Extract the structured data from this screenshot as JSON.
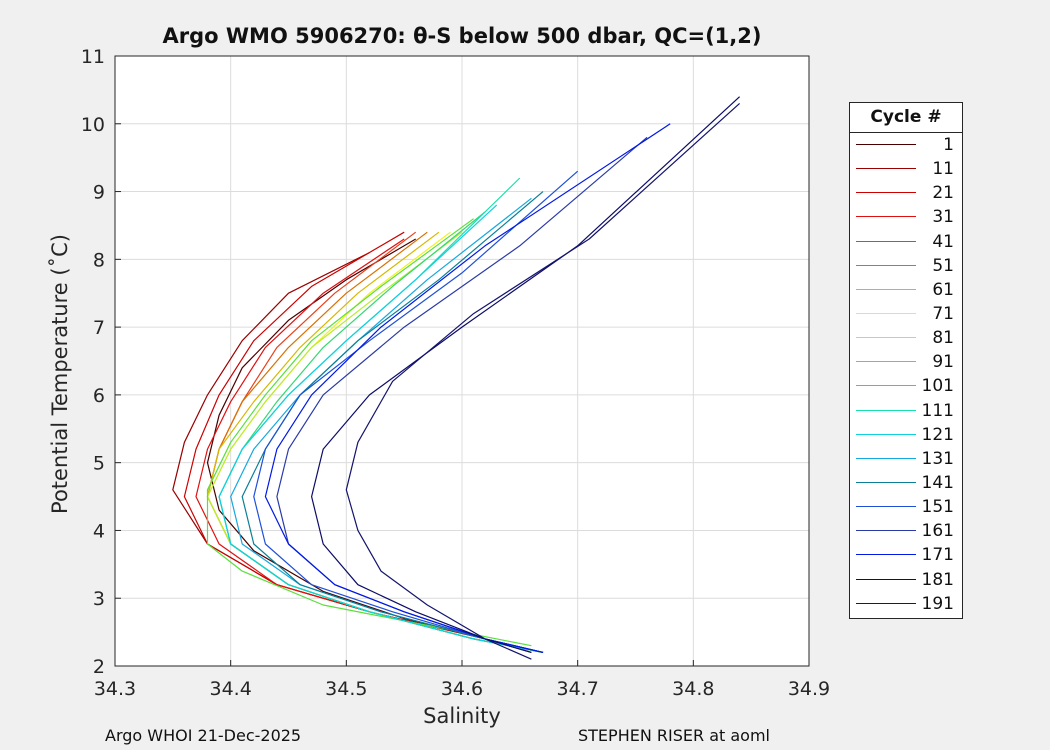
{
  "chart_data": {
    "type": "line",
    "title": "Argo WMO 5906270: θ-S below 500 dbar,  QC=(1,2)",
    "xlabel": "Salinity",
    "ylabel": "Potential Temperature (˚C)",
    "xlim": [
      34.3,
      34.9
    ],
    "ylim": [
      2,
      11
    ],
    "xticks": [
      "34.3",
      "34.4",
      "34.5",
      "34.6",
      "34.7",
      "34.8",
      "34.9"
    ],
    "yticks": [
      "2",
      "3",
      "4",
      "5",
      "6",
      "7",
      "8",
      "9",
      "10",
      "11"
    ],
    "grid": true,
    "legend_title": "Cycle #",
    "legend_position": "right",
    "series": [
      {
        "name": "1",
        "color": "#4a0000",
        "x": [
          34.66,
          34.62,
          34.55,
          34.48,
          34.42,
          34.39,
          34.38,
          34.39,
          34.41,
          34.45,
          34.5,
          34.56
        ],
        "y": [
          2.2,
          2.4,
          2.7,
          3.1,
          3.7,
          4.3,
          5.0,
          5.7,
          6.4,
          7.1,
          7.7,
          8.3
        ]
      },
      {
        "name": "11",
        "color": "#9a0000",
        "x": [
          34.67,
          34.62,
          34.52,
          34.44,
          34.38,
          34.35,
          34.36,
          34.38,
          34.41,
          34.45,
          34.52
        ],
        "y": [
          2.2,
          2.4,
          2.8,
          3.2,
          3.8,
          4.6,
          5.3,
          6.0,
          6.8,
          7.5,
          8.1
        ]
      },
      {
        "name": "21",
        "color": "#cc0000",
        "x": [
          34.67,
          34.61,
          34.52,
          34.44,
          34.38,
          34.36,
          34.37,
          34.39,
          34.42,
          34.47,
          34.55
        ],
        "y": [
          2.2,
          2.4,
          2.8,
          3.2,
          3.8,
          4.5,
          5.2,
          6.0,
          6.8,
          7.6,
          8.4
        ]
      },
      {
        "name": "31",
        "color": "#e01010",
        "x": [
          34.67,
          34.61,
          34.52,
          34.44,
          34.39,
          34.37,
          34.38,
          34.4,
          34.43,
          34.48,
          34.55
        ],
        "y": [
          2.2,
          2.4,
          2.8,
          3.2,
          3.8,
          4.5,
          5.2,
          5.9,
          6.7,
          7.5,
          8.3
        ]
      },
      {
        "name": "41",
        "color": "#e8401a",
        "x": [
          34.67,
          34.61,
          34.52,
          34.45,
          34.4,
          34.38,
          34.39,
          34.41,
          34.44,
          34.49,
          34.56
        ],
        "y": [
          2.2,
          2.4,
          2.8,
          3.2,
          3.8,
          4.5,
          5.2,
          5.9,
          6.7,
          7.5,
          8.4
        ]
      },
      {
        "name": "51",
        "color": "#d97000",
        "x": [
          34.67,
          34.61,
          34.52,
          34.45,
          34.4,
          34.38,
          34.39,
          34.41,
          34.45,
          34.5,
          34.57
        ],
        "y": [
          2.2,
          2.4,
          2.8,
          3.2,
          3.8,
          4.5,
          5.2,
          5.9,
          6.7,
          7.5,
          8.4
        ]
      },
      {
        "name": "61",
        "color": "#d7b800",
        "x": [
          34.67,
          34.61,
          34.52,
          34.45,
          34.4,
          34.38,
          34.39,
          34.42,
          34.46,
          34.51,
          34.58
        ],
        "y": [
          2.2,
          2.4,
          2.8,
          3.2,
          3.8,
          4.5,
          5.2,
          5.9,
          6.7,
          7.5,
          8.4
        ]
      },
      {
        "name": "71",
        "color": "#f2f21a",
        "x": [
          34.67,
          34.61,
          34.52,
          34.45,
          34.4,
          34.38,
          34.4,
          34.43,
          34.47,
          34.52,
          34.59
        ],
        "y": [
          2.2,
          2.4,
          2.8,
          3.2,
          3.8,
          4.5,
          5.2,
          5.9,
          6.7,
          7.5,
          8.4
        ]
      },
      {
        "name": "81",
        "color": "#b8ec30",
        "x": [
          34.67,
          34.61,
          34.52,
          34.45,
          34.4,
          34.38,
          34.4,
          34.43,
          34.47,
          34.53,
          34.6
        ],
        "y": [
          2.2,
          2.4,
          2.8,
          3.2,
          3.8,
          4.5,
          5.2,
          5.9,
          6.7,
          7.5,
          8.4
        ]
      },
      {
        "name": "91",
        "color": "#5ae03c",
        "x": [
          34.66,
          34.6,
          34.48,
          34.41,
          34.38,
          34.38,
          34.4,
          34.43,
          34.47,
          34.53,
          34.61
        ],
        "y": [
          2.3,
          2.5,
          2.9,
          3.4,
          3.8,
          4.6,
          5.3,
          6.0,
          6.8,
          7.6,
          8.6
        ]
      },
      {
        "name": "101",
        "color": "#33d870",
        "x": [
          34.67,
          34.61,
          34.52,
          34.45,
          34.4,
          34.39,
          34.41,
          34.44,
          34.48,
          34.54,
          34.62
        ],
        "y": [
          2.2,
          2.4,
          2.8,
          3.2,
          3.8,
          4.5,
          5.2,
          5.9,
          6.7,
          7.6,
          8.7
        ]
      },
      {
        "name": "111",
        "color": "#1ae0b0",
        "x": [
          34.67,
          34.61,
          34.52,
          34.45,
          34.4,
          34.39,
          34.41,
          34.45,
          34.5,
          34.56,
          34.65
        ],
        "y": [
          2.2,
          2.4,
          2.8,
          3.2,
          3.8,
          4.5,
          5.2,
          6.0,
          6.8,
          7.7,
          9.2
        ]
      },
      {
        "name": "121",
        "color": "#10d0e0",
        "x": [
          34.67,
          34.61,
          34.52,
          34.45,
          34.4,
          34.39,
          34.41,
          34.45,
          34.5,
          34.56,
          34.63
        ],
        "y": [
          2.2,
          2.4,
          2.8,
          3.2,
          3.8,
          4.5,
          5.2,
          6.0,
          6.8,
          7.7,
          8.8
        ]
      },
      {
        "name": "131",
        "color": "#14a8e0",
        "x": [
          34.67,
          34.62,
          34.53,
          34.46,
          34.41,
          34.4,
          34.42,
          34.46,
          34.51,
          34.57,
          34.66
        ],
        "y": [
          2.2,
          2.4,
          2.8,
          3.2,
          3.8,
          4.5,
          5.2,
          6.0,
          6.8,
          7.7,
          8.9
        ]
      },
      {
        "name": "141",
        "color": "#0a7f95",
        "x": [
          34.67,
          34.62,
          34.53,
          34.46,
          34.42,
          34.41,
          34.43,
          34.46,
          34.51,
          34.58,
          34.67
        ],
        "y": [
          2.2,
          2.4,
          2.8,
          3.2,
          3.8,
          4.5,
          5.2,
          6.0,
          6.8,
          7.7,
          9.0
        ]
      },
      {
        "name": "151",
        "color": "#1e50d8",
        "x": [
          34.67,
          34.62,
          34.54,
          34.47,
          34.43,
          34.42,
          34.43,
          34.46,
          34.52,
          34.6,
          34.7
        ],
        "y": [
          2.2,
          2.4,
          2.8,
          3.2,
          3.8,
          4.5,
          5.2,
          6.0,
          6.8,
          7.8,
          9.3
        ]
      },
      {
        "name": "161",
        "color": "#2a3aa8",
        "x": [
          34.67,
          34.62,
          34.55,
          34.49,
          34.45,
          34.44,
          34.45,
          34.48,
          34.55,
          34.65,
          34.76
        ],
        "y": [
          2.2,
          2.4,
          2.8,
          3.2,
          3.8,
          4.5,
          5.2,
          6.0,
          7.0,
          8.2,
          9.8
        ]
      },
      {
        "name": "171",
        "color": "#0018e8",
        "x": [
          34.67,
          34.62,
          34.55,
          34.49,
          34.45,
          34.43,
          34.44,
          34.47,
          34.53,
          34.62,
          34.78
        ],
        "y": [
          2.2,
          2.4,
          2.8,
          3.2,
          3.8,
          4.5,
          5.2,
          6.0,
          7.0,
          8.2,
          10.0
        ]
      },
      {
        "name": "181",
        "color": "#0c0c68",
        "x": [
          34.66,
          34.62,
          34.56,
          34.51,
          34.48,
          34.47,
          34.48,
          34.52,
          34.6,
          34.7,
          34.84
        ],
        "y": [
          2.2,
          2.4,
          2.8,
          3.2,
          3.8,
          4.5,
          5.2,
          6.0,
          7.0,
          8.2,
          10.4
        ]
      },
      {
        "name": "191",
        "color": "#14146e",
        "x": [
          34.66,
          34.62,
          34.57,
          34.53,
          34.51,
          34.5,
          34.51,
          34.54,
          34.61,
          34.71,
          34.84
        ],
        "y": [
          2.1,
          2.4,
          2.9,
          3.4,
          4.0,
          4.6,
          5.3,
          6.2,
          7.2,
          8.3,
          10.3
        ]
      }
    ]
  },
  "footer": {
    "left": "Argo WHOI 21-Dec-2025",
    "right": "STEPHEN RISER at aoml"
  }
}
